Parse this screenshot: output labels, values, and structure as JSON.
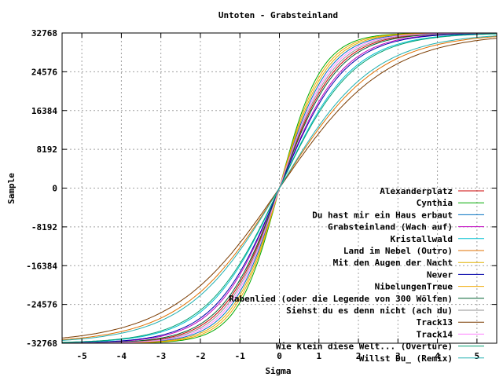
{
  "chart_data": {
    "type": "line",
    "title": "Untoten - Grabsteinland",
    "xlabel": "Sigma",
    "ylabel": "Sample",
    "xlim": [
      -5.5,
      5.5
    ],
    "ylim": [
      -32768,
      32768
    ],
    "xticks": [
      -5,
      -4,
      -3,
      -2,
      -1,
      0,
      1,
      2,
      3,
      4,
      5
    ],
    "xtick_labels": [
      "-5",
      "-4",
      "-3",
      "-2",
      "-1",
      "0",
      "1",
      "2",
      "3",
      "4",
      "5"
    ],
    "yticks": [
      -32768,
      -24576,
      -16384,
      -8192,
      0,
      8192,
      16384,
      24576,
      32768
    ],
    "ytick_labels": [
      "-32768",
      "-24576",
      "-16384",
      "-8192",
      "0",
      "8192",
      "16384",
      "24576",
      "32768"
    ],
    "grid": true,
    "legend_position": "bottom-right",
    "series": [
      {
        "name": "Alexanderplatz",
        "color": "#cc0000",
        "scale": 1.2
      },
      {
        "name": "Cynthia",
        "color": "#00aa00",
        "scale": 0.9
      },
      {
        "name": "Du hast mir ein Haus erbaut",
        "color": "#0070c0",
        "scale": 1.05
      },
      {
        "name": "Grabsteinland (Wach auf)",
        "color": "#c000c0",
        "scale": 1.35
      },
      {
        "name": "Kristallwald",
        "color": "#00c0d0",
        "scale": 1.55
      },
      {
        "name": "Land im Nebel (Outro)",
        "color": "#e07000",
        "scale": 2.1
      },
      {
        "name": "Mit den Augen der Nacht",
        "color": "#e0b000",
        "scale": 1.0
      },
      {
        "name": "Never",
        "color": "#0000aa",
        "scale": 1.4
      },
      {
        "name": "NibelungenTreue",
        "color": "#f0a800",
        "scale": 0.95
      },
      {
        "name": "Rabenlied (oder die Legende von 300 Wölfen)",
        "color": "#006030",
        "scale": 1.25
      },
      {
        "name": "Siehst du es denn nicht (ach du)",
        "color": "#909090",
        "scale": 1.15
      },
      {
        "name": "Track13",
        "color": "#7a3b00",
        "scale": 2.3
      },
      {
        "name": "Track14",
        "color": "#ff80ff",
        "scale": 1.1
      },
      {
        "name": "Wie klein diese Welt... (Overtüre)",
        "color": "#00a070",
        "scale": 1.6
      },
      {
        "name": "Willst Du_ (Remix)",
        "color": "#20b0b0",
        "scale": 2.0
      }
    ]
  }
}
